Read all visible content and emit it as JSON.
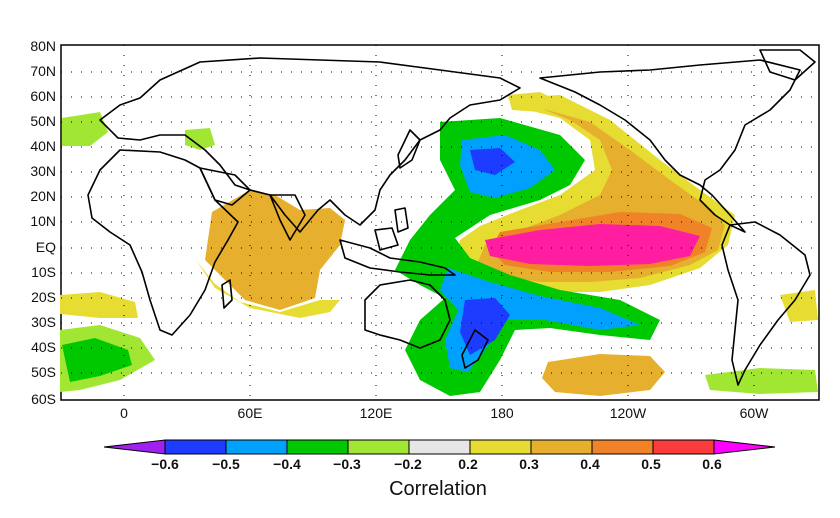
{
  "map": {
    "lat_labels": [
      "80N",
      "70N",
      "60N",
      "50N",
      "40N",
      "30N",
      "20N",
      "10N",
      "EQ",
      "10S",
      "20S",
      "30S",
      "40S",
      "50S",
      "60S"
    ],
    "lon_labels": [
      "0",
      "60E",
      "120E",
      "180",
      "120W",
      "60W"
    ]
  },
  "colorbar": {
    "title": "Correlation",
    "labels": [
      "−0.6",
      "−0.5",
      "−0.4",
      "−0.3",
      "−0.2",
      "0.2",
      "0.3",
      "0.4",
      "0.5",
      "0.6"
    ],
    "colors": [
      "#a020f0",
      "#1e3cff",
      "#00a0ff",
      "#00c800",
      "#a0e632",
      "#e6e6e6",
      "#e6dc32",
      "#e6af2d",
      "#f08228",
      "#fa3c3c",
      "#ff00ff"
    ]
  }
}
